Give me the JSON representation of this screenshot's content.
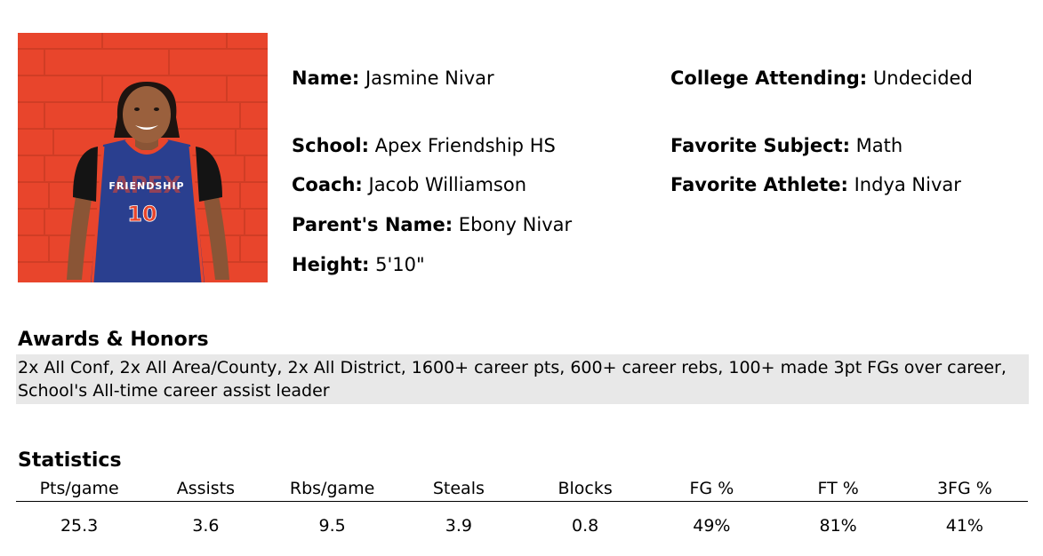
{
  "profile": {
    "photo": {
      "jersey_text": "FRIENDSHIP",
      "jersey_back_text": "APEX",
      "jersey_number": "10"
    },
    "fields": {
      "name": {
        "label": "Name:",
        "value": "Jasmine Nivar"
      },
      "college": {
        "label": "College Attending:",
        "value": "Undecided"
      },
      "school": {
        "label": "School:",
        "value": "Apex Friendship HS"
      },
      "subject": {
        "label": "Favorite Subject:",
        "value": "Math"
      },
      "coach": {
        "label": "Coach:",
        "value": "Jacob Williamson"
      },
      "athlete": {
        "label": "Favorite Athlete:",
        "value": "Indya Nivar"
      },
      "parent": {
        "label": "Parent's Name:",
        "value": "Ebony Nivar"
      },
      "height": {
        "label": "Height:",
        "value": "5'10\""
      }
    }
  },
  "awards": {
    "title": "Awards & Honors",
    "text": "2x All Conf, 2x All Area/County, 2x All District, 1600+ career pts, 600+ career rebs, 100+ made 3pt FGs over career, School's All-time career assist leader"
  },
  "statistics": {
    "title": "Statistics",
    "headers": [
      "Pts/game",
      "Assists",
      "Rbs/game",
      "Steals",
      "Blocks",
      "FG %",
      "FT %",
      "3FG %"
    ],
    "values": [
      "25.3",
      "3.6",
      "9.5",
      "3.9",
      "0.8",
      "49%",
      "81%",
      "41%"
    ]
  },
  "colors": {
    "wall": "#e8452c",
    "jersey": "#2a3f8f",
    "accent": "#e8452c",
    "awards_bg": "#e8e8e8"
  }
}
